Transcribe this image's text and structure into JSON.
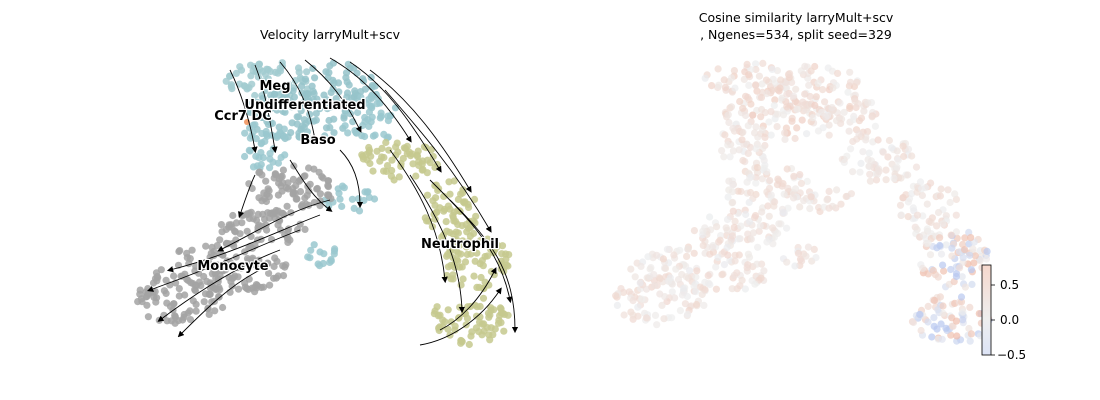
{
  "chart_data": [
    {
      "type": "scatter",
      "subtype": "velocity-stream-embedding",
      "title": "Velocity larryMult+scv",
      "axes_visible": false,
      "clusters": [
        {
          "name": "Meg",
          "color": "#a2cbd0"
        },
        {
          "name": "Undifferentiated",
          "color": "#95c3ca"
        },
        {
          "name": "Ccr7_DC",
          "color": "#f2a070"
        },
        {
          "name": "Baso",
          "color": "#9ac8cf"
        },
        {
          "name": "Neutrophil",
          "color": "#c5c98e"
        },
        {
          "name": "Monocyte",
          "color": "#a3a3a3"
        }
      ],
      "labels_shown": [
        "Meg",
        "Undifferentiated",
        "Ccr7 DC",
        "Baso",
        "Neutrophil",
        "Monocyte"
      ],
      "streamline_color": "#000000"
    },
    {
      "type": "scatter",
      "subtype": "embedding-colored-by-value",
      "title_line1": "Cosine similarity larryMult+scv",
      "title_line2": ", Ngenes=534, split seed=329",
      "axes_visible": false,
      "colormap": "coolwarm",
      "colorbar": {
        "ticks": [
          "0.5",
          "0.0",
          "−0.5"
        ],
        "range": [
          -0.5,
          0.75
        ],
        "color_low": "#b8c8f0",
        "color_mid": "#eeeeee",
        "color_high": "#f0b8a4"
      }
    }
  ]
}
